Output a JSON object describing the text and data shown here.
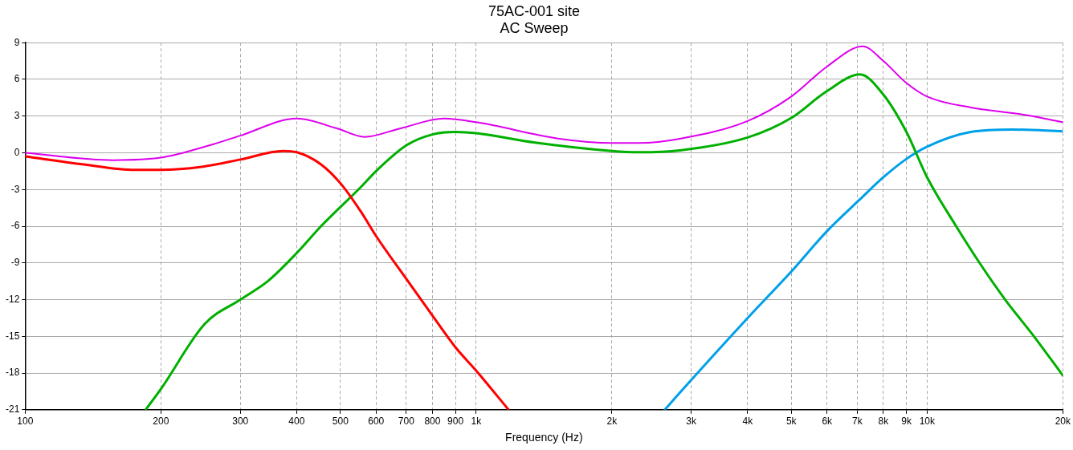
{
  "chart_data": {
    "type": "line",
    "title": "75AC-001 site",
    "subtitle": "AC Sweep",
    "xlabel": "Frequency (Hz)",
    "log": "x",
    "grid": true,
    "legend": false,
    "marker": "none",
    "line_style": "solid",
    "xlim": [
      100,
      20000
    ],
    "ylim": [
      -21,
      9
    ],
    "xticks": [
      100,
      200,
      300,
      400,
      500,
      600,
      700,
      800,
      900,
      {
        "value": 1000,
        "label": "1k"
      },
      {
        "value": 2000,
        "label": "2k"
      },
      {
        "value": 3000,
        "label": "3k"
      },
      {
        "value": 4000,
        "label": "4k"
      },
      {
        "value": 5000,
        "label": "5k"
      },
      {
        "value": 6000,
        "label": "6k"
      },
      {
        "value": 7000,
        "label": "7k"
      },
      {
        "value": 8000,
        "label": "8k"
      },
      {
        "value": 9000,
        "label": "9k"
      },
      {
        "value": 10000,
        "label": "10k"
      },
      {
        "value": 20000,
        "label": "20k"
      }
    ],
    "yticks": [
      -21,
      -18,
      -15,
      -12,
      -9,
      -6,
      -3,
      0,
      3,
      6,
      9
    ],
    "series": [
      {
        "color": "#dd00ee",
        "x": [
          100,
          157,
          200,
          256,
          300,
          400,
          491,
          566,
          680,
          850,
          1000,
          1530,
          2000,
          2300,
          2830,
          4000,
          5000,
          6000,
          7200,
          8000,
          9000,
          10000,
          12500,
          16500,
          20000
        ],
        "values": [
          0,
          -0.6,
          -0.4,
          0.6,
          1.4,
          2.8,
          2.0,
          1.3,
          2.0,
          2.8,
          2.5,
          1.15,
          0.8,
          0.8,
          1.15,
          2.6,
          4.6,
          7.05,
          8.7,
          7.5,
          5.7,
          4.6,
          3.7,
          3.1,
          2.5
        ]
      },
      {
        "color": "#ff0000",
        "x": [
          100,
          135,
          175,
          200,
          246,
          300,
          373,
          400,
          453,
          503,
          555,
          600,
          700,
          800,
          900,
          1000,
          1180
        ],
        "values": [
          -0.3,
          -0.95,
          -1.4,
          -1.4,
          -1.15,
          -0.55,
          0.15,
          0.05,
          -0.95,
          -2.6,
          -4.8,
          -6.8,
          -10.3,
          -13.3,
          -15.9,
          -17.8,
          -21
        ]
      },
      {
        "color": "#00b000",
        "x": [
          185,
          200,
          250,
          300,
          345,
          400,
          453,
          555,
          600,
          700,
          800,
          900,
          1000,
          1340,
          2000,
          2300,
          2830,
          4000,
          5000,
          6000,
          7100,
          8000,
          9000,
          10000,
          11600,
          13100,
          14900,
          17300,
          20000
        ],
        "values": [
          -21,
          -19.3,
          -14,
          -12,
          -10.5,
          -8.2,
          -6,
          -2.8,
          -1.5,
          0.6,
          1.5,
          1.7,
          1.6,
          0.85,
          0.15,
          0.05,
          0.2,
          1.25,
          2.85,
          5.05,
          6.4,
          4.75,
          1.7,
          -2,
          -6,
          -9.05,
          -12,
          -15.05,
          -18.2
        ]
      },
      {
        "color": "#00a0e8",
        "x": [
          2620,
          2830,
          4000,
          5000,
          6000,
          7100,
          8000,
          9000,
          10000,
          12500,
          15500,
          20000
        ],
        "values": [
          -21,
          -19.6,
          -13.5,
          -9.7,
          -6.4,
          -3.8,
          -2,
          -0.5,
          0.5,
          1.7,
          1.9,
          1.75
        ]
      }
    ]
  }
}
